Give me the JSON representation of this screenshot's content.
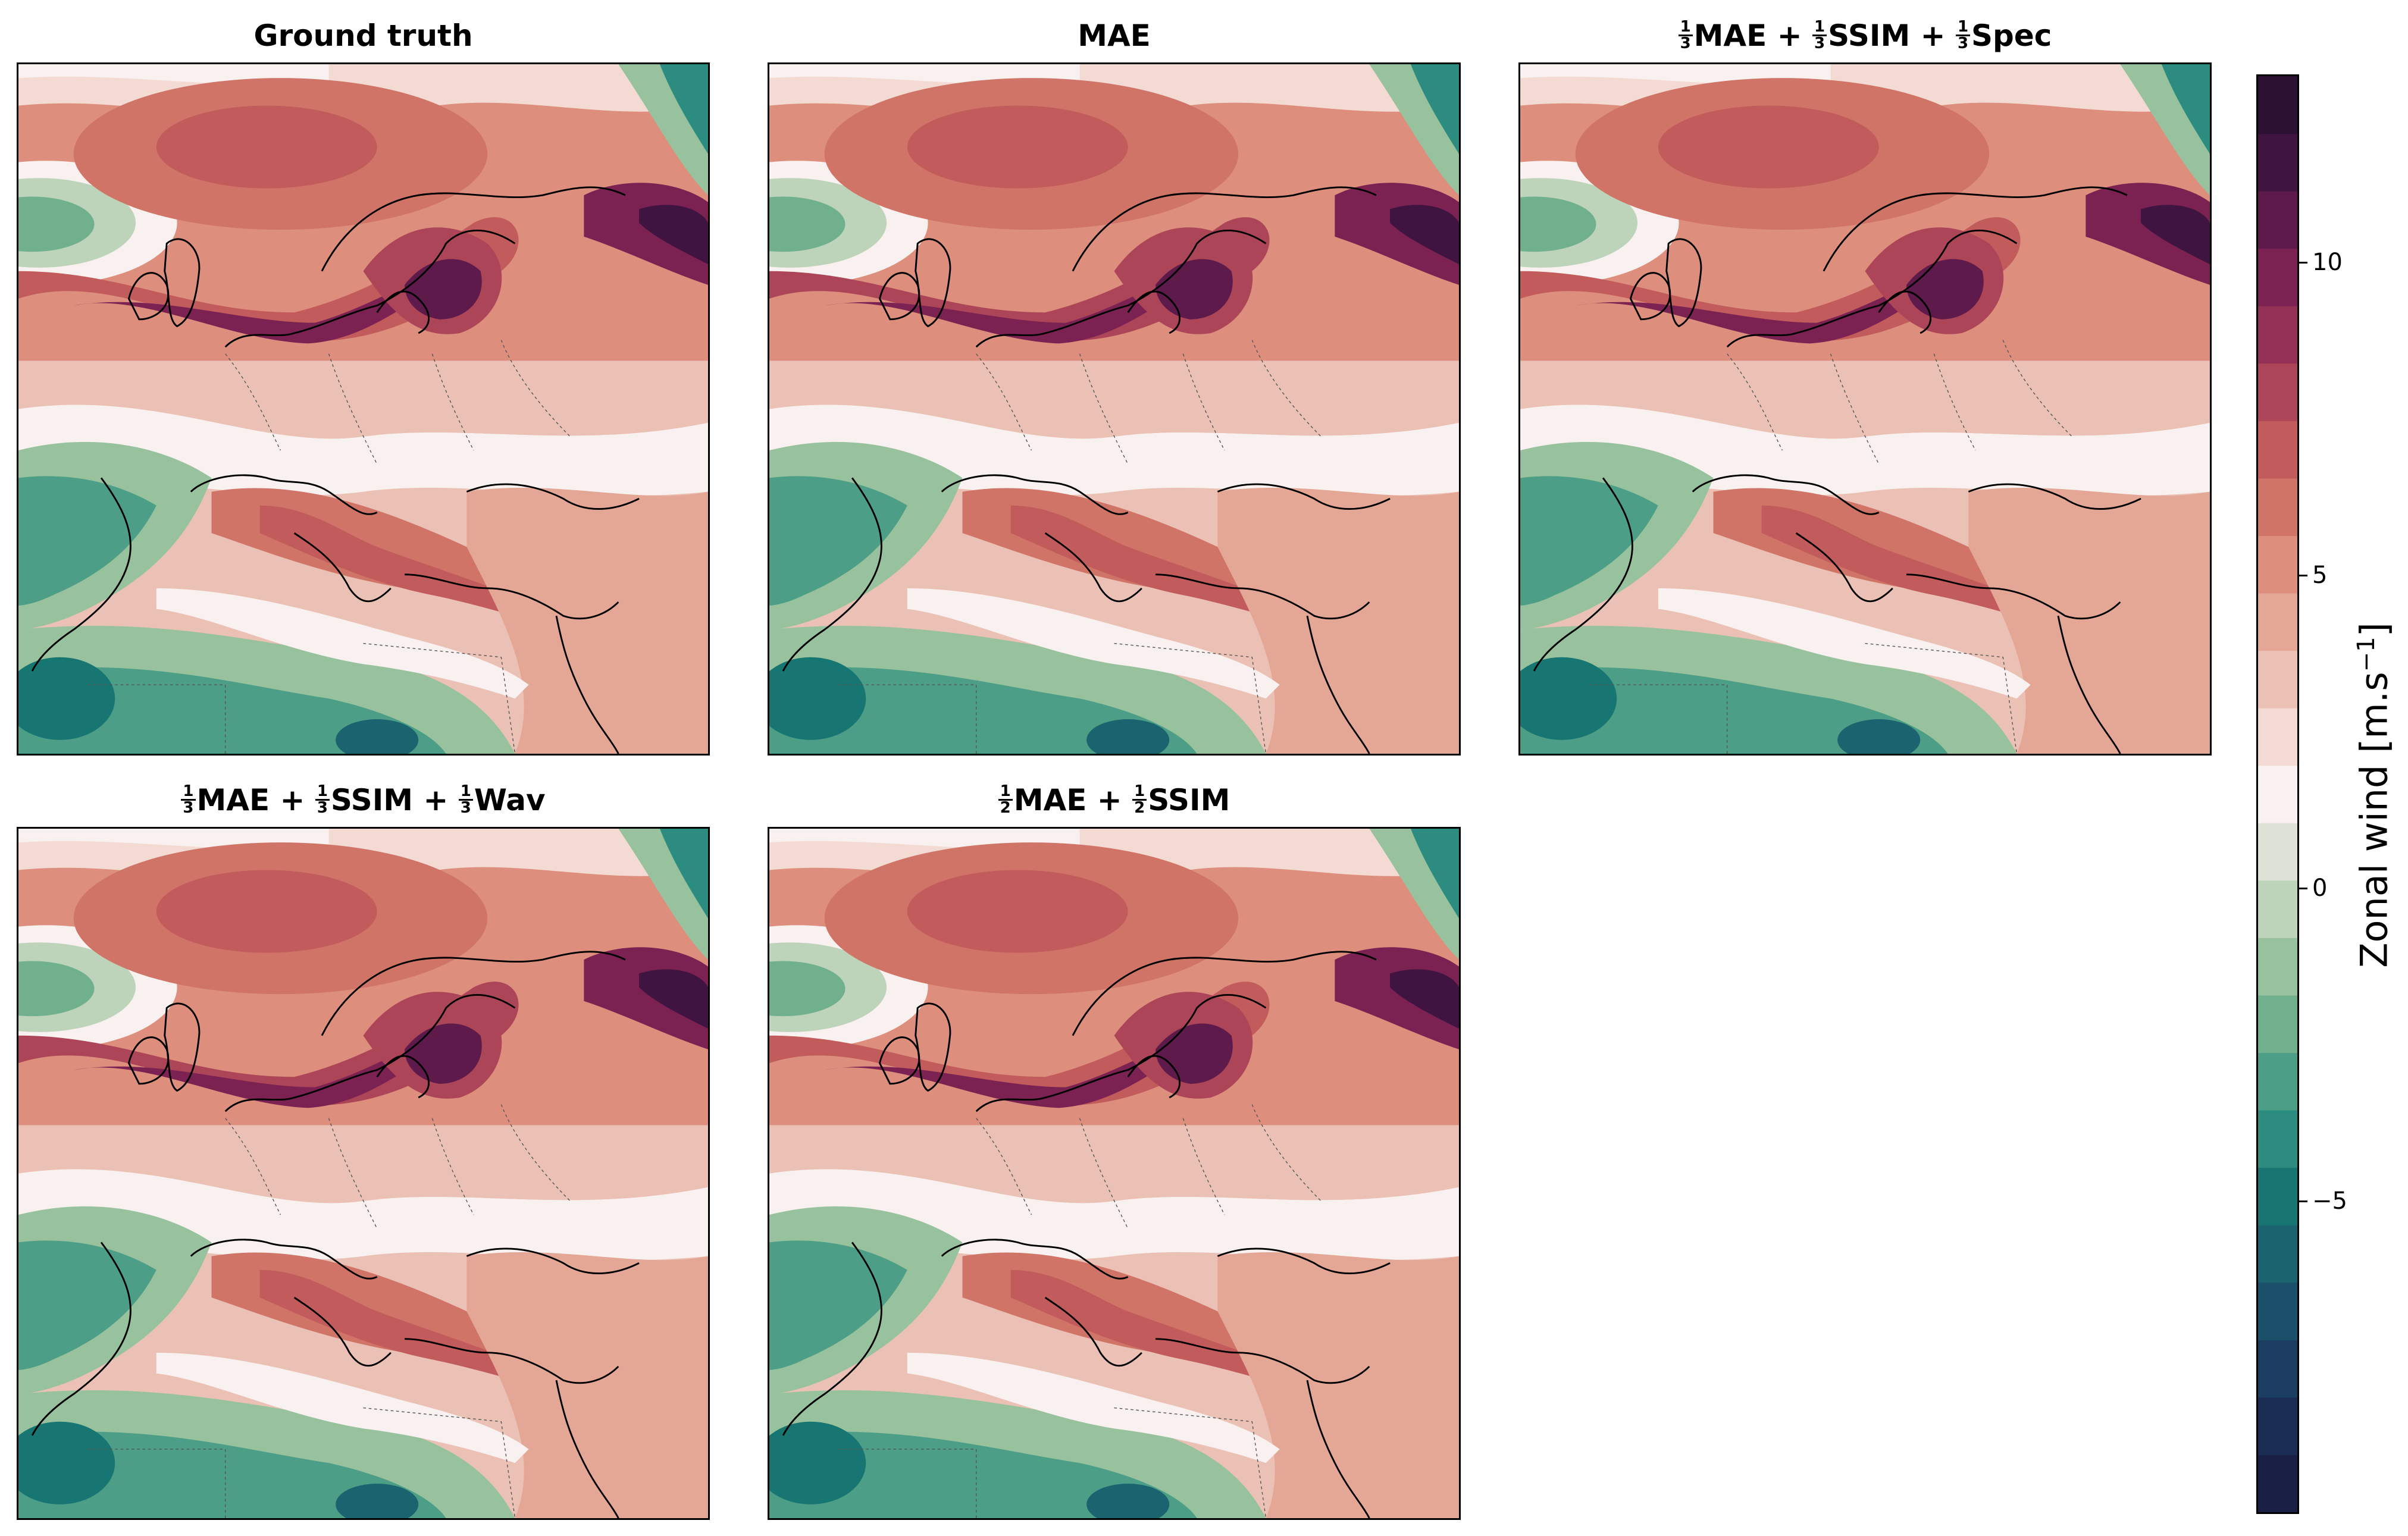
{
  "figure": {
    "panels": [
      {
        "title_text": "Ground truth",
        "terms": []
      },
      {
        "title_text": "MAE",
        "terms": []
      },
      {
        "title_text": "",
        "terms": [
          {
            "num": "1",
            "den": "3",
            "label": "MAE"
          },
          {
            "sep": " + "
          },
          {
            "num": "1",
            "den": "3",
            "label": "SSIM"
          },
          {
            "sep": " + "
          },
          {
            "num": "1",
            "den": "3",
            "label": "Spec"
          }
        ]
      },
      {
        "title_text": "",
        "terms": [
          {
            "num": "1",
            "den": "3",
            "label": "MAE"
          },
          {
            "sep": " + "
          },
          {
            "num": "1",
            "den": "3",
            "label": "SSIM"
          },
          {
            "sep": " + "
          },
          {
            "num": "1",
            "den": "3",
            "label": "Wav"
          }
        ]
      },
      {
        "title_text": "",
        "terms": [
          {
            "num": "1",
            "den": "2",
            "label": "MAE"
          },
          {
            "sep": " + "
          },
          {
            "num": "1",
            "den": "2",
            "label": "SSIM"
          }
        ]
      }
    ],
    "colorbar": {
      "label": "Zonal wind [m.s",
      "label_sup": "−1",
      "label_end": "]",
      "vmin": -10,
      "vmax": 13,
      "ticks": [
        {
          "value": 10,
          "label": "10"
        },
        {
          "value": 5,
          "label": "5"
        },
        {
          "value": 0,
          "label": "0"
        },
        {
          "value": -5,
          "label": "−5"
        }
      ],
      "colors": [
        "#1a1f45",
        "#1c2d55",
        "#1c3e62",
        "#1b506b",
        "#1a636f",
        "#187672",
        "#2b8c7f",
        "#4c9e87",
        "#70b08d",
        "#97c29d",
        "#bdd3ba",
        "#dde2d6",
        "#f9f1ef",
        "#f3dbd3",
        "#ebc1b5",
        "#e5a795",
        "#dd8e7c",
        "#d07467",
        "#c25b5b",
        "#ad4558",
        "#953156",
        "#7b2253",
        "#5d1a4b",
        "#3f1440",
        "#2c1133"
      ]
    }
  },
  "chart_data": {
    "type": "heatmap",
    "description_variable": "Zonal wind",
    "unit": "m.s−1",
    "panels": [
      "Ground truth",
      "MAE",
      "1/3 MAE + 1/3 SSIM + 1/3 Spec",
      "1/3 MAE + 1/3 SSIM + 1/3 Wav",
      "1/2 MAE + 1/2 SSIM"
    ],
    "zlim": [
      -10,
      13
    ]
  }
}
